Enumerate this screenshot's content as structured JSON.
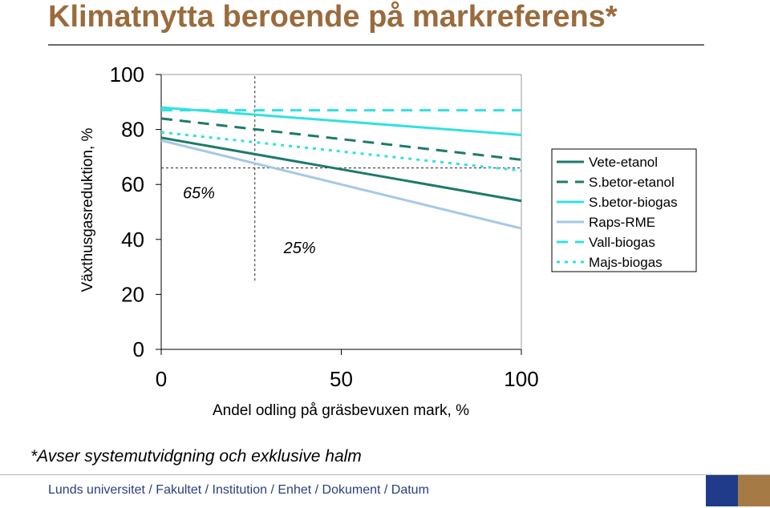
{
  "page": {
    "title": "Klimatnytta beroende på markreferens*",
    "footnote": "*Avser systemutvidgning och exklusive halm",
    "footer": "Lunds universitet / Fakultet / Institution / Enhet / Dokument / Datum",
    "colors": {
      "title": "#9a6b3c",
      "footer_text": "#2a3f7d",
      "footer_block_blue": "#1f3b8a",
      "footer_block_brown": "#a57a44"
    }
  },
  "chart_data": {
    "type": "line",
    "title": "",
    "xlabel": "Andel odling på gräsbevuxen mark, %",
    "ylabel": "Växthusgasreduktion, %",
    "xlim": [
      0,
      100
    ],
    "ylim": [
      0,
      100
    ],
    "x_ticks": [
      0,
      50,
      100
    ],
    "y_ticks": [
      0,
      20,
      40,
      60,
      80,
      100
    ],
    "grid": false,
    "legend_position": "right",
    "series": [
      {
        "name": "Vete-etanol",
        "x": [
          0,
          100
        ],
        "y": [
          77,
          54
        ],
        "color": "#1f7a6b",
        "dash": "solid"
      },
      {
        "name": "S.betor-etanol",
        "x": [
          0,
          100
        ],
        "y": [
          84,
          69
        ],
        "color": "#1f7a6b",
        "dash": "dashed"
      },
      {
        "name": "S.betor-biogas",
        "x": [
          0,
          100
        ],
        "y": [
          88,
          78
        ],
        "color": "#33e0e0",
        "dash": "solid"
      },
      {
        "name": "Raps-RME",
        "x": [
          0,
          100
        ],
        "y": [
          76,
          44
        ],
        "color": "#a6c8e6",
        "dash": "solid"
      },
      {
        "name": "Vall-biogas",
        "x": [
          0,
          100
        ],
        "y": [
          87,
          87
        ],
        "color": "#33e0e0",
        "dash": "dashed"
      },
      {
        "name": "Majs-biogas",
        "x": [
          0,
          100
        ],
        "y": [
          79,
          65
        ],
        "color": "#33e0e0",
        "dash": "dotted"
      }
    ],
    "annotations": [
      {
        "text": "65%",
        "x": 6,
        "y": 55
      },
      {
        "text": "25%",
        "x": 34,
        "y": 35
      }
    ],
    "reference_lines": [
      {
        "orientation": "vertical",
        "x": 26,
        "y_from": 25,
        "y_to": 100
      },
      {
        "orientation": "horizontal",
        "y": 66,
        "x_from": 0,
        "x_to": 100
      }
    ]
  }
}
